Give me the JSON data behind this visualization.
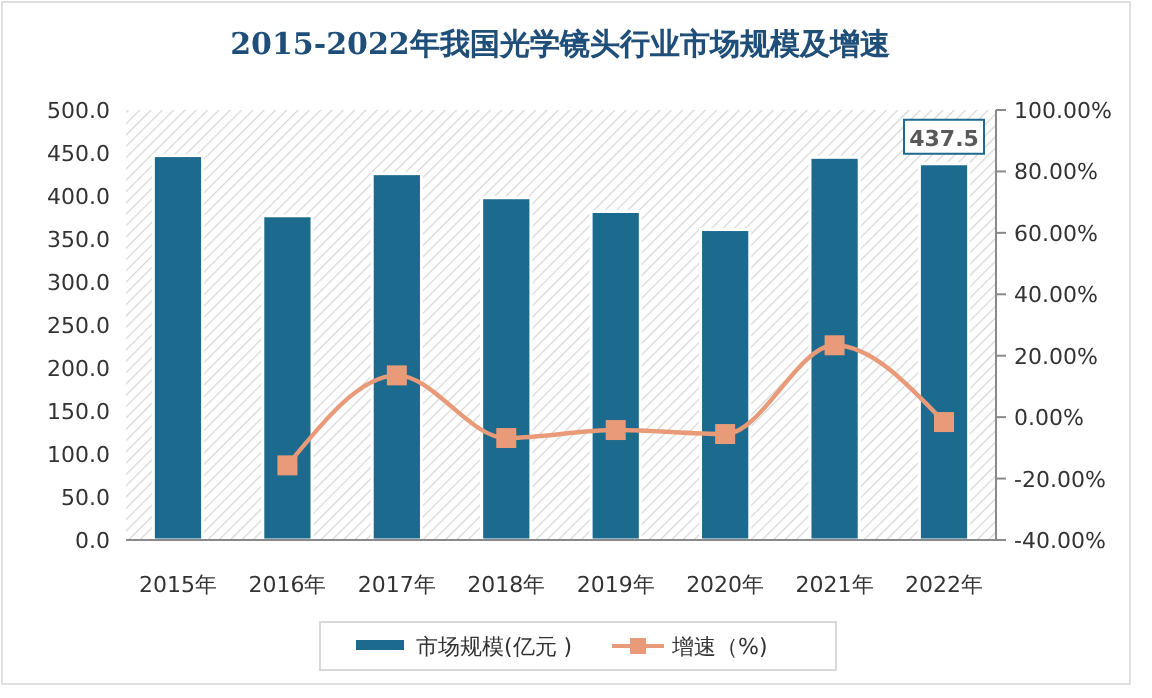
{
  "chart_data": {
    "type": "bar",
    "title": "2015-2022年我国光学镜头行业市场规模及增速",
    "categories": [
      "2015年",
      "2016年",
      "2017年",
      "2018年",
      "2019年",
      "2020年",
      "2021年",
      "2022年"
    ],
    "series": [
      {
        "name": "市场规模(亿元 )",
        "color": "#1c6a8e",
        "values": [
          447,
          377,
          426,
          398,
          382,
          361,
          445,
          437.5
        ],
        "value_labels": [
          null,
          null,
          null,
          null,
          null,
          null,
          null,
          "437.5"
        ]
      },
      {
        "name": "增速（%)",
        "type": "line",
        "axis": "y2",
        "color": "#e99a78",
        "marker": "square",
        "values": [
          null,
          -15.7,
          13.6,
          -6.8,
          -4.2,
          -5.5,
          23.4,
          -1.6
        ]
      }
    ],
    "ylim": [
      0,
      500
    ],
    "yticks": [
      {
        "value": 0,
        "label": "0.0"
      },
      {
        "value": 50,
        "label": "50.0"
      },
      {
        "value": 100,
        "label": "100.0"
      },
      {
        "value": 150,
        "label": "150.0"
      },
      {
        "value": 200,
        "label": "200.0"
      },
      {
        "value": 250,
        "label": "250.0"
      },
      {
        "value": 300,
        "label": "300.0"
      },
      {
        "value": 350,
        "label": "350.0"
      },
      {
        "value": 400,
        "label": "400.0"
      },
      {
        "value": 450,
        "label": "450.0"
      },
      {
        "value": 500,
        "label": "500.0"
      }
    ],
    "y2lim": [
      -40,
      100
    ],
    "y2ticks": [
      {
        "value": -40,
        "label": "-40.00%"
      },
      {
        "value": -20,
        "label": "-20.00%"
      },
      {
        "value": 0,
        "label": "0.00%"
      },
      {
        "value": 20,
        "label": "20.00%"
      },
      {
        "value": 40,
        "label": "40.00%"
      },
      {
        "value": 60,
        "label": "60.00%"
      },
      {
        "value": 80,
        "label": "80.00%"
      },
      {
        "value": 100,
        "label": "100.00%"
      }
    ],
    "grid": false,
    "legend": "bottom"
  }
}
